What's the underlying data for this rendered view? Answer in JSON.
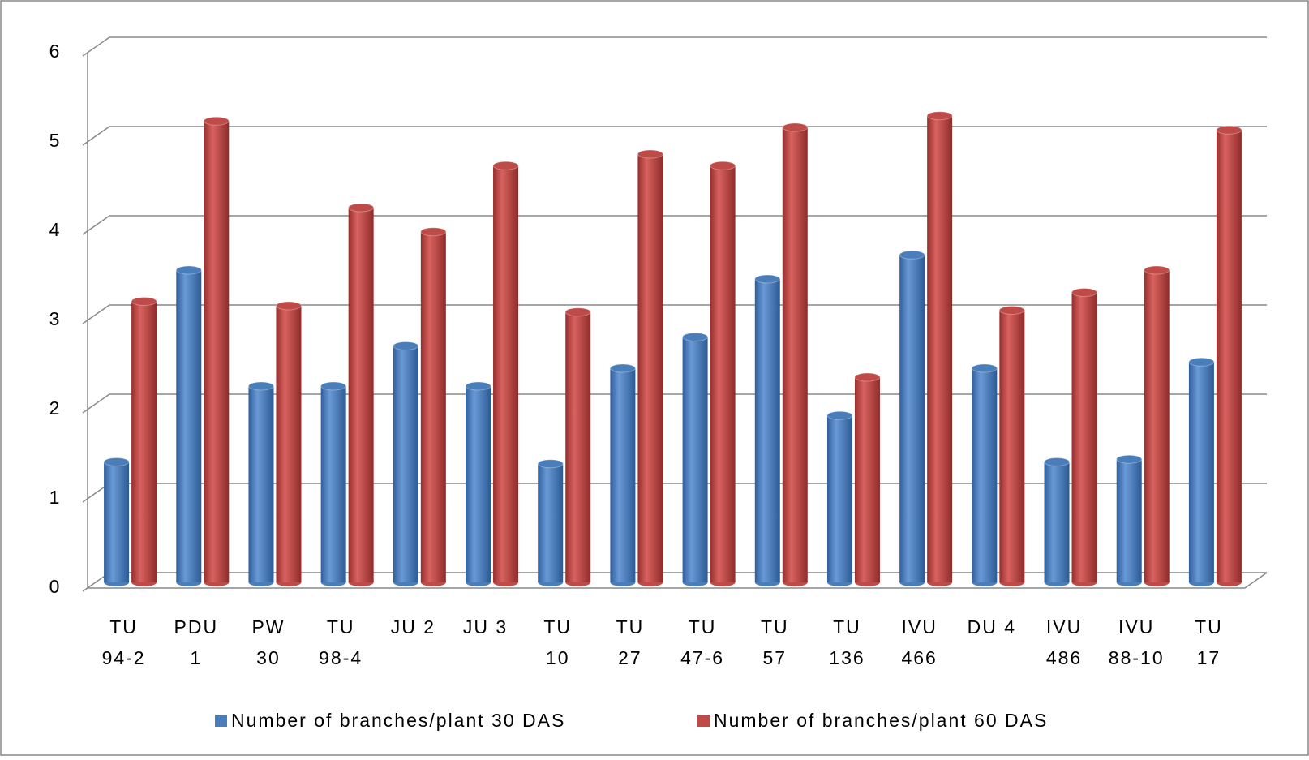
{
  "chart_data": {
    "type": "bar3d",
    "categories": [
      [
        "TU",
        "94-2"
      ],
      [
        "PDU",
        "1"
      ],
      [
        "PW",
        "30"
      ],
      [
        "TU",
        "98-4"
      ],
      [
        "JU 2"
      ],
      [
        "JU 3"
      ],
      [
        "TU",
        "10"
      ],
      [
        "TU",
        "27"
      ],
      [
        "TU",
        "47-6"
      ],
      [
        "TU",
        "57"
      ],
      [
        "TU",
        "136"
      ],
      [
        "IVU",
        "466"
      ],
      [
        "DU 4"
      ],
      [
        "IVU",
        "486"
      ],
      [
        "IVU",
        "88-10"
      ],
      [
        "TU",
        "17"
      ]
    ],
    "series": [
      {
        "name": "Number of branches/plant 30 DAS",
        "color": "#4a7ebb",
        "values": [
          1.35,
          3.5,
          2.2,
          2.2,
          2.65,
          2.2,
          1.33,
          2.4,
          2.75,
          3.4,
          1.87,
          3.67,
          2.4,
          1.35,
          1.38,
          2.47
        ]
      },
      {
        "name": "Number of branches/plant 60 DAS",
        "color": "#be4b48",
        "values": [
          3.15,
          5.17,
          3.1,
          4.2,
          3.93,
          4.67,
          3.03,
          4.8,
          4.67,
          5.1,
          2.3,
          5.23,
          3.05,
          3.25,
          3.5,
          5.07
        ]
      }
    ],
    "ylim": [
      0,
      6
    ],
    "yticks": [
      0,
      1,
      2,
      3,
      4,
      5,
      6
    ],
    "grid": true,
    "legend": "bottom"
  }
}
